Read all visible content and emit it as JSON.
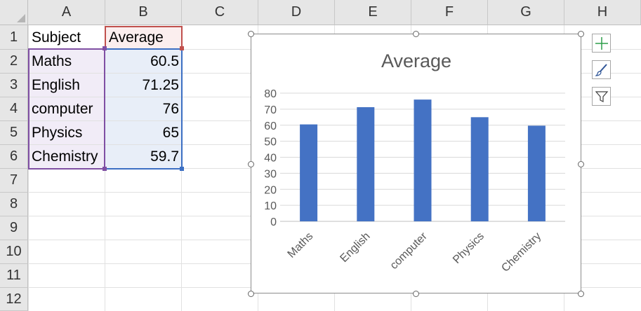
{
  "columns": [
    "A",
    "B",
    "C",
    "D",
    "E",
    "F",
    "G",
    "H"
  ],
  "rows": [
    "1",
    "2",
    "3",
    "4",
    "5",
    "6",
    "7",
    "8",
    "9",
    "10",
    "11",
    "12"
  ],
  "cells": {
    "header": {
      "subject": "Subject",
      "average": "Average"
    },
    "data": [
      {
        "subject": "Maths",
        "average": "60.5"
      },
      {
        "subject": "English",
        "average": "71.25"
      },
      {
        "subject": "computer",
        "average": "76"
      },
      {
        "subject": "Physics",
        "average": "65"
      },
      {
        "subject": "Chemistry",
        "average": "59.7"
      }
    ]
  },
  "chart_data": {
    "type": "bar",
    "title": "Average",
    "categories": [
      "Maths",
      "English",
      "computer",
      "Physics",
      "Chemistry"
    ],
    "values": [
      60.5,
      71.25,
      76,
      65,
      59.7
    ],
    "ylim": [
      0,
      80
    ],
    "yticks": [
      "0",
      "10",
      "20",
      "30",
      "40",
      "50",
      "60",
      "70",
      "80"
    ],
    "grid": true,
    "bar_color": "#4472c4"
  },
  "chart_tools": {
    "elements_icon": "plus-icon",
    "styles_icon": "brush-icon",
    "filters_icon": "funnel-icon"
  }
}
